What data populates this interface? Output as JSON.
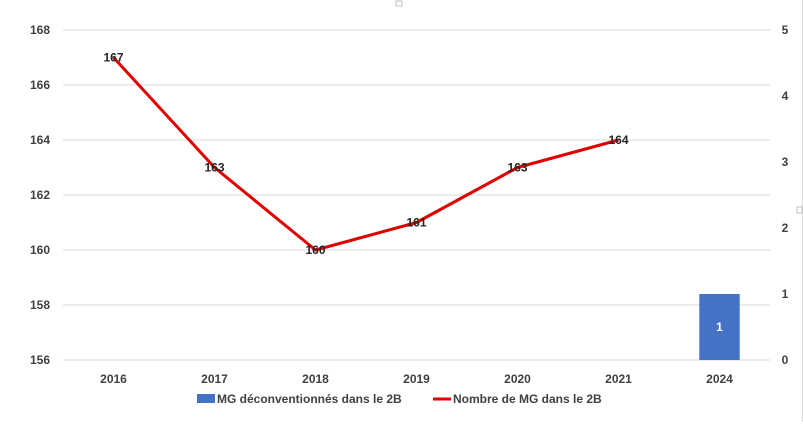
{
  "chart_data": {
    "type": "bar+line",
    "categories": [
      "2016",
      "2017",
      "2018",
      "2019",
      "2020",
      "2021",
      "2024"
    ],
    "series": [
      {
        "name": "MG déconventionnés dans le 2B",
        "type": "bar",
        "axis": "right",
        "values": [
          null,
          null,
          null,
          null,
          null,
          null,
          1
        ],
        "labels": [
          "",
          "",
          "",
          "",
          "",
          "",
          "1"
        ],
        "color": "#4472c4"
      },
      {
        "name": "Nombre de MG dans le 2B",
        "type": "line",
        "axis": "left",
        "values": [
          167,
          163,
          160,
          161,
          163,
          164,
          null
        ],
        "labels": [
          "167",
          "163",
          "160",
          "161",
          "163",
          "164",
          ""
        ],
        "color": "#e00000"
      }
    ],
    "y_left": {
      "ylim": [
        156,
        168
      ],
      "ticks": [
        "156",
        "158",
        "160",
        "162",
        "164",
        "166",
        "168"
      ]
    },
    "y_right": {
      "ylim": [
        0,
        5
      ],
      "ticks": [
        "0",
        "1",
        "2",
        "3",
        "4",
        "5"
      ]
    },
    "title": "",
    "xlabel": "",
    "ylabel": "",
    "grid": true,
    "legend_position": "bottom"
  }
}
